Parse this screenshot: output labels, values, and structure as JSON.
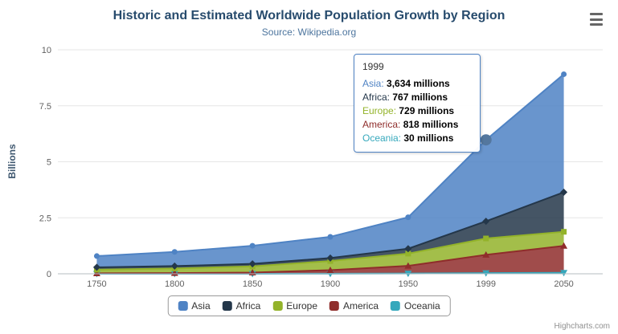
{
  "theme": {
    "title_color": "#274B6D",
    "subtitle_color": "#4D759E",
    "axis_label_color": "#606060",
    "axis_title_color": "#3E576F",
    "grid_color": "#E6E6E6",
    "axis_line_color": "#B5BCC2",
    "tooltip_border_color": "#4F83C4",
    "hover_marker_color": "#54779E",
    "legend_border_color": "#9A9A9A",
    "hamburger_color": "#666666",
    "credits_color": "#909090"
  },
  "chart_data": {
    "type": "area",
    "stacking": "normal",
    "title": "Historic and Estimated Worldwide Population Growth by Region",
    "subtitle": "Source: Wikipedia.org",
    "ylabel": "Billions",
    "xlabel": "",
    "unit": "millions",
    "grid": true,
    "legend_position": "bottom",
    "categories": [
      "1750",
      "1800",
      "1850",
      "1900",
      "1950",
      "1999",
      "2050"
    ],
    "ylim": [
      0,
      10
    ],
    "yticks": [
      0,
      2.5,
      5,
      7.5,
      10
    ],
    "series": [
      {
        "name": "Asia",
        "color": "#4F83C4",
        "symbol": "circle",
        "values": [
          502,
          635,
          809,
          947,
          1402,
          3634,
          5268
        ]
      },
      {
        "name": "Africa",
        "color": "#24374A",
        "symbol": "diamond",
        "values": [
          106,
          107,
          111,
          133,
          221,
          767,
          1766
        ]
      },
      {
        "name": "Europe",
        "color": "#93B32A",
        "symbol": "square",
        "values": [
          163,
          203,
          276,
          408,
          547,
          729,
          628
        ]
      },
      {
        "name": "America",
        "color": "#8F2D2B",
        "symbol": "triangle",
        "values": [
          18,
          31,
          54,
          156,
          339,
          818,
          1201
        ]
      },
      {
        "name": "Oceania",
        "color": "#35A8BC",
        "symbol": "triangle-down",
        "values": [
          2,
          2,
          2,
          6,
          13,
          30,
          46
        ]
      }
    ]
  },
  "tooltip": {
    "header": "1999",
    "hover_series": "Asia",
    "suffix": "millions",
    "rows": [
      {
        "name": "Asia",
        "value": "3,634"
      },
      {
        "name": "Africa",
        "value": "767"
      },
      {
        "name": "Europe",
        "value": "729"
      },
      {
        "name": "America",
        "value": "818"
      },
      {
        "name": "Oceania",
        "value": "30"
      }
    ]
  },
  "legend": {
    "items": [
      "Asia",
      "Africa",
      "Europe",
      "America",
      "Oceania"
    ]
  },
  "credits": "Highcharts.com"
}
